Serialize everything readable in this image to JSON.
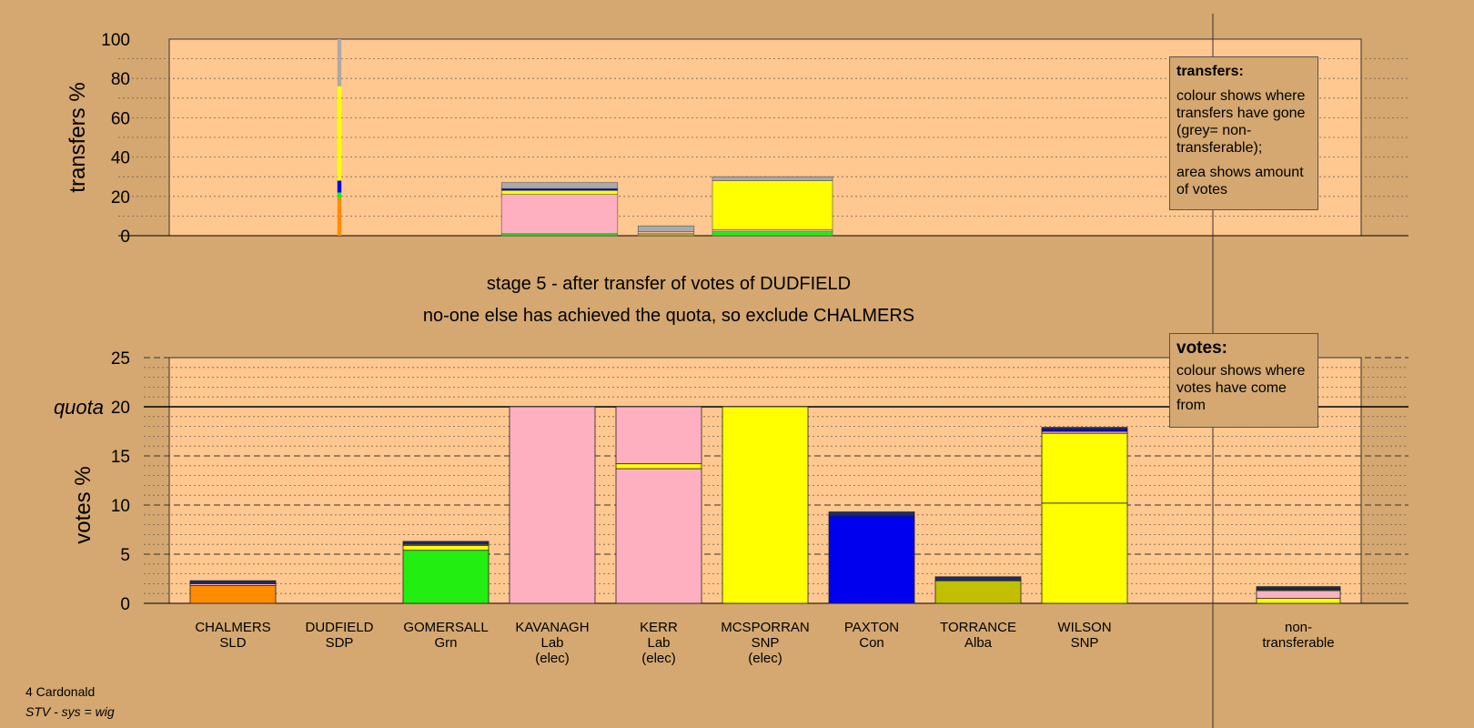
{
  "footer": {
    "ward": "4 Cardonald",
    "system": "STV - sys = wig"
  },
  "legend_transfers": {
    "title": "transfers:",
    "line1": "colour shows where transfers have gone (grey= non-transferable);",
    "line2": "area shows amount of votes"
  },
  "legend_votes": {
    "title": "votes:",
    "text": "colour shows where votes have come from"
  },
  "colors": {
    "SLD": "#ff8c00",
    "SDP": "#1a2a6c",
    "Grn": "#22ee11",
    "Lab": "#ffb0c0",
    "SNP": "#ffff00",
    "Con": "#0000ee",
    "Alba": "#c0c000",
    "nontransferable": "#aaaaaa",
    "plot_bg": "#ffc890",
    "page_bg": "#d4a870"
  },
  "chart_data": [
    {
      "type": "bar",
      "name": "transfers",
      "ylabel": "transfers %",
      "ylim": [
        0,
        100
      ],
      "yticks": [
        0,
        20,
        40,
        60,
        80,
        100
      ],
      "title": "stage 5 - after transfer of votes of DUDFIELD",
      "subtitle": "no-one else has achieved the quota, so exclude CHALMERS",
      "categories": [
        "CHALMERS",
        "DUDFIELD",
        "GOMERSALL",
        "KAVANAGH",
        "KERR",
        "MCSPORRAN",
        "PAXTON",
        "TORRANCE",
        "WILSON"
      ],
      "bars": [
        {
          "candidate": "DUDFIELD",
          "width_votes_pct": 0.1,
          "segments": [
            {
              "party": "SLD",
              "value": 19
            },
            {
              "party": "Grn",
              "value": 3
            },
            {
              "party": "Con",
              "value": 6
            },
            {
              "party": "SNP",
              "value": 48
            },
            {
              "party": "nontransferable",
              "value": 24
            }
          ]
        },
        {
          "candidate": "KAVANAGH",
          "width_votes_pct": 2.9,
          "segments": [
            {
              "party": "Grn",
              "value": 1
            },
            {
              "party": "Lab",
              "value": 20
            },
            {
              "party": "SNP",
              "value": 2
            },
            {
              "party": "Con",
              "value": 1
            },
            {
              "party": "nontransferable",
              "value": 3
            }
          ]
        },
        {
          "candidate": "KERR",
          "width_votes_pct": 1.4,
          "segments": [
            {
              "party": "Alba",
              "value": 1
            },
            {
              "party": "Lab",
              "value": 1
            },
            {
              "party": "nontransferable",
              "value": 3
            }
          ]
        },
        {
          "candidate": "MCSPORRAN",
          "width_votes_pct": 3.0,
          "segments": [
            {
              "party": "Grn",
              "value": 2
            },
            {
              "party": "Lab",
              "value": 1
            },
            {
              "party": "SNP",
              "value": 25
            },
            {
              "party": "nontransferable",
              "value": 2
            }
          ]
        }
      ]
    },
    {
      "type": "bar",
      "name": "votes",
      "ylabel": "votes %",
      "ylim": [
        0,
        25
      ],
      "yticks": [
        0,
        5,
        10,
        15,
        20,
        25
      ],
      "quota": 20,
      "quota_label": "quota",
      "candidates": [
        {
          "name": "CHALMERS",
          "party": "SLD",
          "elec": "",
          "segments": [
            {
              "party": "SLD",
              "value": 1.8
            },
            {
              "party": "Lab",
              "value": 0.2
            },
            {
              "party": "SDP",
              "value": 0.3
            }
          ]
        },
        {
          "name": "DUDFIELD",
          "party": "SDP",
          "elec": "",
          "segments": []
        },
        {
          "name": "GOMERSALL",
          "party": "Grn",
          "elec": "",
          "segments": [
            {
              "party": "Grn",
              "value": 5.4
            },
            {
              "party": "SNP",
              "value": 0.5
            },
            {
              "party": "Lab",
              "value": 0.1
            },
            {
              "party": "SDP",
              "value": 0.3
            }
          ]
        },
        {
          "name": "KAVANAGH",
          "party": "Lab",
          "elec": "(elec)",
          "segments": [
            {
              "party": "Lab",
              "value": 20
            }
          ]
        },
        {
          "name": "KERR",
          "party": "Lab",
          "elec": "(elec)",
          "segments": [
            {
              "party": "Lab",
              "value": 13.7
            },
            {
              "party": "SNP",
              "value": 0.5
            },
            {
              "party": "Lab",
              "value": 5.8
            }
          ]
        },
        {
          "name": "MCSPORRAN",
          "party": "SNP",
          "elec": "(elec)",
          "segments": [
            {
              "party": "SNP",
              "value": 20
            }
          ]
        },
        {
          "name": "PAXTON",
          "party": "Con",
          "elec": "",
          "segments": [
            {
              "party": "Con",
              "value": 8.9
            },
            {
              "party": "SDP",
              "value": 0.4
            }
          ]
        },
        {
          "name": "TORRANCE",
          "party": "Alba",
          "elec": "",
          "segments": [
            {
              "party": "Alba",
              "value": 2.3
            },
            {
              "party": "SDP",
              "value": 0.4
            }
          ]
        },
        {
          "name": "WILSON",
          "party": "SNP",
          "elec": "",
          "segments": [
            {
              "party": "SNP",
              "value": 10.2
            },
            {
              "party": "SNP",
              "value": 7.1
            },
            {
              "party": "Lab",
              "value": 0.2
            },
            {
              "party": "Con",
              "value": 0.2
            },
            {
              "party": "SDP",
              "value": 0.2
            }
          ]
        }
      ],
      "nontransferable": {
        "label1": "non-",
        "label2": "transferable",
        "segments": [
          {
            "party": "SNP",
            "value": 0.5
          },
          {
            "party": "Lab",
            "value": 0.8
          },
          {
            "party": "Grn",
            "value": 0.1
          },
          {
            "party": "Con",
            "value": 0.1
          },
          {
            "party": "SDP",
            "value": 0.2
          }
        ]
      }
    }
  ]
}
